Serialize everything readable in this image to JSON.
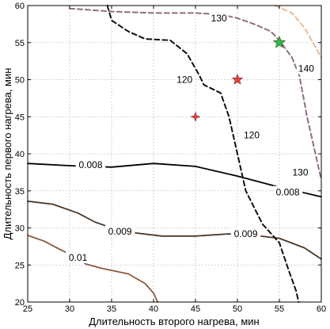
{
  "chart_data": {
    "type": "contour",
    "title": "",
    "xlabel": "Длительность второго нагрева, мин",
    "ylabel": "Длительность первого нагрева, мин",
    "xlim": [
      25,
      60
    ],
    "ylim": [
      20,
      60
    ],
    "xticks": [
      25,
      30,
      35,
      40,
      45,
      50,
      55,
      60
    ],
    "yticks": [
      20,
      25,
      30,
      35,
      40,
      45,
      50,
      55,
      60
    ],
    "grid": true,
    "contours": [
      {
        "group": "lower-solid",
        "level": "0.008",
        "color": "#000000",
        "style": "solid",
        "points": [
          [
            25,
            38.7
          ],
          [
            30,
            38.4
          ],
          [
            35,
            38.2
          ],
          [
            40,
            38.7
          ],
          [
            45,
            38.3
          ],
          [
            50,
            37.0
          ],
          [
            55,
            35.5
          ],
          [
            57,
            35
          ],
          [
            60,
            34.2
          ]
        ],
        "labels": [
          {
            "text": "0.008",
            "x": 32.5,
            "y": 38.5
          },
          {
            "text": "0.008",
            "x": 56,
            "y": 34.8
          }
        ]
      },
      {
        "group": "lower-solid",
        "level": "0.009",
        "color": "#4a3728",
        "style": "solid",
        "points": [
          [
            25,
            33.6
          ],
          [
            28,
            33.2
          ],
          [
            31,
            32.0
          ],
          [
            33,
            30.8
          ],
          [
            35,
            30.0
          ],
          [
            38,
            29.3
          ],
          [
            41,
            28.9
          ],
          [
            45,
            28.9
          ],
          [
            49,
            29.2
          ],
          [
            52,
            29.0
          ],
          [
            55,
            28.6
          ],
          [
            58,
            27.3
          ],
          [
            60,
            25.8
          ]
        ],
        "labels": [
          {
            "text": "0.009",
            "x": 36,
            "y": 29.5
          },
          {
            "text": "0.009",
            "x": 51,
            "y": 29.2
          }
        ]
      },
      {
        "group": "lower-solid",
        "level": "0.01",
        "color": "#8b5a3c",
        "style": "solid",
        "points": [
          [
            25,
            29.0
          ],
          [
            27,
            28.2
          ],
          [
            29,
            27.0
          ],
          [
            30,
            26.5
          ],
          [
            32,
            25.1
          ],
          [
            34,
            24.5
          ],
          [
            37,
            23.8
          ],
          [
            39,
            22.5
          ],
          [
            40,
            21.2
          ],
          [
            40.5,
            20
          ]
        ],
        "labels": [
          {
            "text": "0.01",
            "x": 31,
            "y": 26
          }
        ]
      },
      {
        "group": "upper-dashed",
        "level": "120",
        "color": "#111111",
        "style": "dashed",
        "points": [
          [
            34.5,
            60
          ],
          [
            35,
            58
          ],
          [
            37,
            56.5
          ],
          [
            39,
            55.5
          ],
          [
            42,
            55.3
          ],
          [
            44,
            53.5
          ],
          [
            45,
            51.5
          ],
          [
            45.5,
            50.5
          ],
          [
            46,
            49.3
          ],
          [
            48,
            48.2
          ],
          [
            49,
            45
          ],
          [
            50,
            40
          ],
          [
            51,
            35
          ],
          [
            53,
            30.5
          ],
          [
            55,
            28
          ],
          [
            56.2,
            24
          ],
          [
            57,
            21.5
          ],
          [
            57.3,
            20
          ]
        ],
        "labels": [
          {
            "text": "120",
            "x": 43.7,
            "y": 50
          },
          {
            "text": "120",
            "x": 51.7,
            "y": 42.5
          }
        ]
      },
      {
        "group": "upper-dashed",
        "level": "130",
        "color": "#8e6f7b",
        "style": "dashed",
        "points": [
          [
            30,
            59.6
          ],
          [
            35,
            59.2
          ],
          [
            40,
            59.0
          ],
          [
            45,
            59.0
          ],
          [
            48,
            58.8
          ],
          [
            50,
            58.3
          ],
          [
            52,
            57.5
          ],
          [
            54,
            56.5
          ],
          [
            55,
            55.3
          ],
          [
            56.5,
            53
          ],
          [
            57.4,
            50.5
          ],
          [
            58.3,
            45
          ],
          [
            59.3,
            40
          ],
          [
            60,
            36.5
          ]
        ],
        "labels": [
          {
            "text": "130",
            "x": 47.8,
            "y": 58.3
          },
          {
            "text": "130",
            "x": 57.5,
            "y": 37.5
          }
        ]
      },
      {
        "group": "upper-dashed",
        "level": "140",
        "color": "#e8b99a",
        "style": "dashed",
        "points": [
          [
            54.5,
            60
          ],
          [
            56.5,
            59
          ],
          [
            58,
            57
          ],
          [
            59,
            55
          ],
          [
            60,
            53
          ]
        ],
        "labels": [
          {
            "text": "140",
            "x": 58.2,
            "y": 51.5
          }
        ]
      }
    ],
    "markers": [
      {
        "name": "red-star-50-50",
        "shape": "star",
        "color": "#e8413a",
        "x": 50,
        "y": 50
      },
      {
        "name": "red-star-45-45",
        "shape": "star4",
        "color": "#e8413a",
        "x": 45,
        "y": 45
      },
      {
        "name": "green-star-55-55",
        "shape": "star",
        "color": "#2db84a",
        "x": 55,
        "y": 55
      }
    ]
  }
}
